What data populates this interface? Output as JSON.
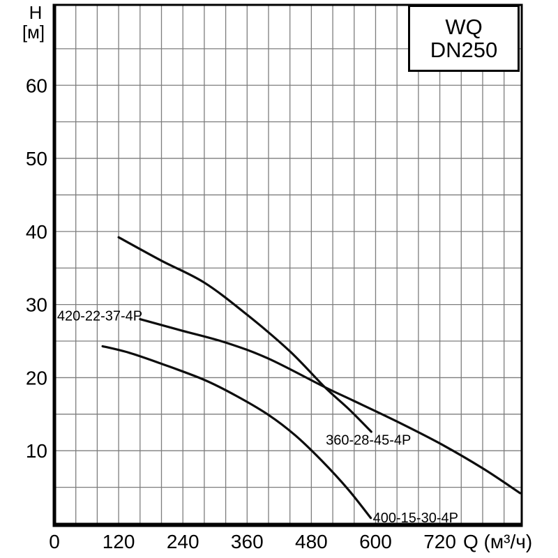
{
  "model_box": {
    "line1": "WQ",
    "line2": "DN250"
  },
  "chart_data": {
    "type": "line",
    "title": "WQ DN250 pump performance curves",
    "xlabel": "Q (м³/ч)",
    "ylabel_line1": "H",
    "ylabel_line2": "[м]",
    "xlim": [
      0,
      873
    ],
    "ylim": [
      0,
      71
    ],
    "x_ticks": [
      0,
      120,
      240,
      360,
      480,
      600,
      720
    ],
    "y_ticks": [
      10,
      20,
      30,
      40,
      50,
      60
    ],
    "grid": {
      "on": true,
      "x_step": 40,
      "y_step": 5,
      "color": "#7d7d7d"
    },
    "axis_color": "#000000",
    "curve_color": "#0d0d0d",
    "background": "#ffffff",
    "legend_position": "top-right-box",
    "series": [
      {
        "name": "360-28-45-4P",
        "points": [
          [
            120,
            39.2
          ],
          [
            200,
            36.0
          ],
          [
            280,
            33.0
          ],
          [
            360,
            28.6
          ],
          [
            440,
            23.6
          ],
          [
            505,
            18.7
          ],
          [
            550,
            15.7
          ],
          [
            592,
            12.6
          ]
        ]
      },
      {
        "name": "420-22-37-4P",
        "points": [
          [
            160,
            28.0
          ],
          [
            240,
            26.4
          ],
          [
            320,
            24.8
          ],
          [
            400,
            22.6
          ],
          [
            505,
            18.7
          ],
          [
            560,
            16.8
          ],
          [
            640,
            14.0
          ],
          [
            720,
            11.0
          ],
          [
            800,
            7.6
          ],
          [
            870,
            4.2
          ]
        ]
      },
      {
        "name": "400-15-30-4P",
        "points": [
          [
            90,
            24.3
          ],
          [
            140,
            23.4
          ],
          [
            200,
            21.9
          ],
          [
            280,
            19.7
          ],
          [
            340,
            17.5
          ],
          [
            400,
            14.9
          ],
          [
            450,
            12.1
          ],
          [
            500,
            8.6
          ],
          [
            550,
            4.6
          ],
          [
            591,
            0.8
          ]
        ]
      }
    ],
    "annotations": [
      {
        "text": "420-22-37-4P",
        "x": 5,
        "y": 28.5
      },
      {
        "text": "360-28-45-4P",
        "x": 507,
        "y": 11.5
      },
      {
        "text": "400-15-30-4P",
        "x": 595,
        "y": 0.85
      }
    ]
  }
}
